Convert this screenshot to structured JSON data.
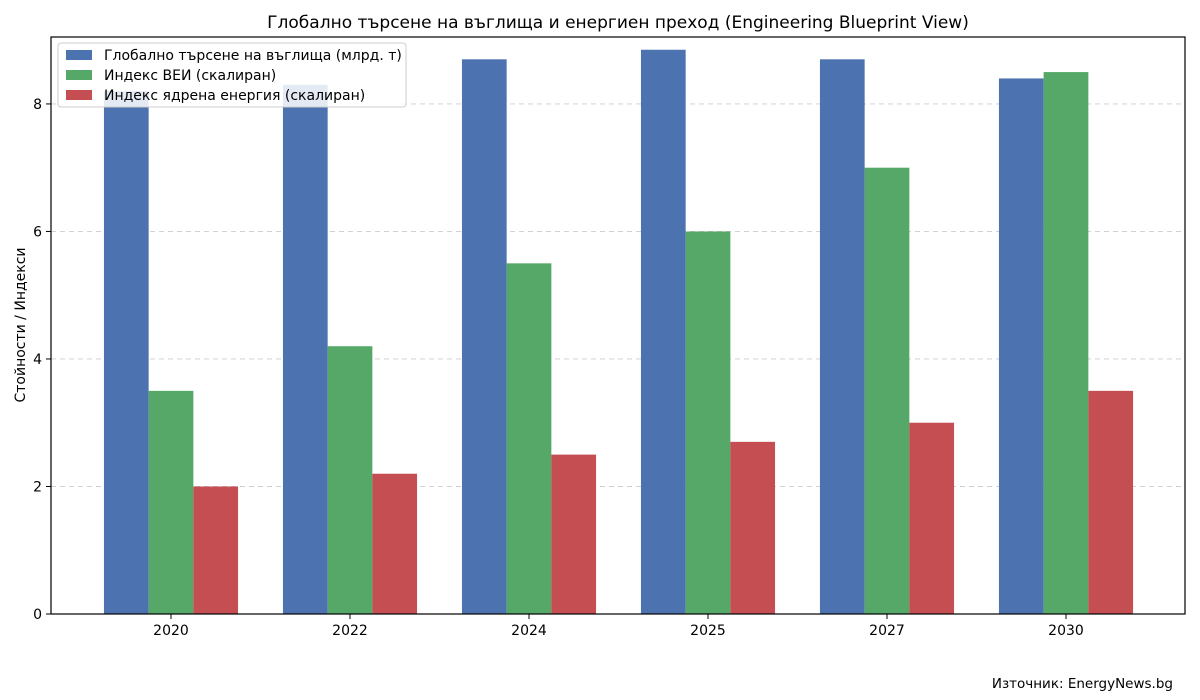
{
  "chart_data": {
    "type": "bar",
    "title": "Глобално търсене на въглища и енергиен преход (Engineering Blueprint View)",
    "xlabel": "",
    "ylabel": "Стойности / Индекси",
    "categories": [
      "2020",
      "2022",
      "2024",
      "2025",
      "2027",
      "2030"
    ],
    "series": [
      {
        "name": "Глобално търсене на въглища (млрд. т)",
        "color": "#4c72b0",
        "values": [
          8.2,
          8.3,
          8.7,
          8.85,
          8.7,
          8.4
        ]
      },
      {
        "name": "Индекс ВЕИ (скалиран)",
        "color": "#55a868",
        "values": [
          3.5,
          4.2,
          5.5,
          6.0,
          7.0,
          8.5
        ]
      },
      {
        "name": "Индекс ядрена енергия (скалиран)",
        "color": "#c44e52",
        "values": [
          2.0,
          2.2,
          2.5,
          2.7,
          3.0,
          3.5
        ]
      }
    ],
    "ylim": [
      0,
      9.05
    ],
    "yticks": [
      0,
      2,
      4,
      6,
      8
    ],
    "grid": "y-dashed",
    "legend_position": "top-left"
  },
  "source_note": "Източник: EnergyNews.bg"
}
